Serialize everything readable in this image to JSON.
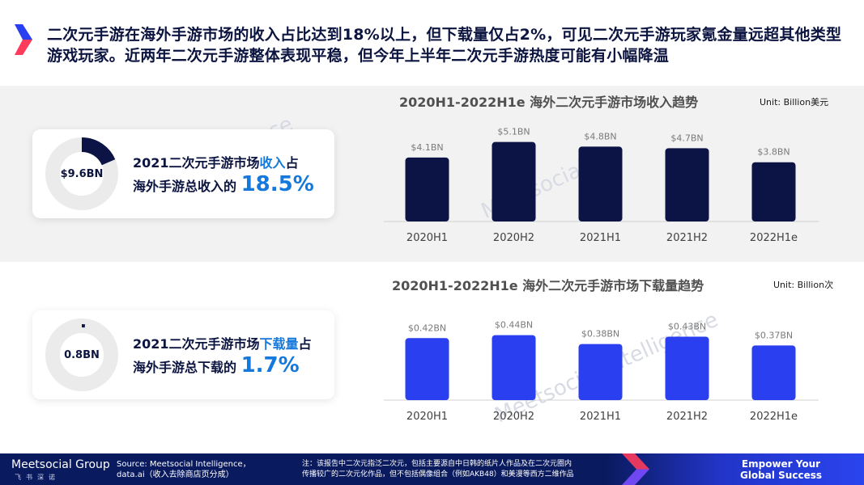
{
  "headline": "二次元手游在海外手游市场的收入占比达到18%以上，但下载量仅占2%，可见二次元手游玩家氪金量远超其他类型游戏玩家。近两年二次元手游整体表现平稳，但今年上半年二次元手游热度可能有小幅降温",
  "colors": {
    "navy": "#0c1446",
    "blue": "#2a3ff0",
    "accent": "#1478dc",
    "footer": "#0a1a5e"
  },
  "cards": [
    {
      "center_label": "$9.6BN",
      "line1_pre": "2021二次元手游市场",
      "line1_hl": "收入",
      "line1_post": "占",
      "line2_pre": "海外手游总收入的 ",
      "pct": "18.5%",
      "fraction": 0.185
    },
    {
      "center_label": "0.8BN",
      "line1_pre": "2021二次元手游市场",
      "line1_hl": "下载量",
      "line1_post": "占",
      "line2_pre": "海外手游总下载的 ",
      "pct": "1.7%",
      "fraction": 0.017
    }
  ],
  "chart_data": [
    {
      "type": "bar",
      "title": "2020H1-2022H1e 海外二次元手游市场收入趋势",
      "unit": "Unit: Billion美元",
      "categories": [
        "2020H1",
        "2020H2",
        "2021H1",
        "2021H2",
        "2022H1e"
      ],
      "values": [
        4.1,
        5.1,
        4.8,
        4.7,
        3.8
      ],
      "labels": [
        "$4.1BN",
        "$5.1BN",
        "$4.8BN",
        "$4.7BN",
        "$3.8BN"
      ],
      "ylim": [
        0,
        5.6
      ],
      "color": "#0c1446"
    },
    {
      "type": "bar",
      "title": "2020H1-2022H1e 海外二次元手游市场下载量趋势",
      "unit": "Unit: Billion次",
      "categories": [
        "2020H1",
        "2020H2",
        "2021H1",
        "2021H2",
        "2022H1e"
      ],
      "values": [
        0.42,
        0.44,
        0.38,
        0.43,
        0.37
      ],
      "labels": [
        "$0.42BN",
        "$0.44BN",
        "$0.38BN",
        "$0.43BN",
        "$0.37BN"
      ],
      "ylim": [
        0,
        0.52
      ],
      "color": "#2a3ff0"
    }
  ],
  "footer": {
    "logo": "Meetsocial Group",
    "logo_sub": "飞书深诺",
    "source_line1": "Source: Meetsocial Intelligence，",
    "source_line2": "data.ai（收入去除商店页分成）",
    "note_line1": "注：该报告中二次元指泛二次元，包括主要源自中日韩的纸片人作品及在二次元圈内",
    "note_line2": "传播较广的二次元化作品，但不包括偶像组合（例如AKB48）和美漫等西方二维作品",
    "slogan_line1": "Empower Your",
    "slogan_line2": "Global Success"
  }
}
